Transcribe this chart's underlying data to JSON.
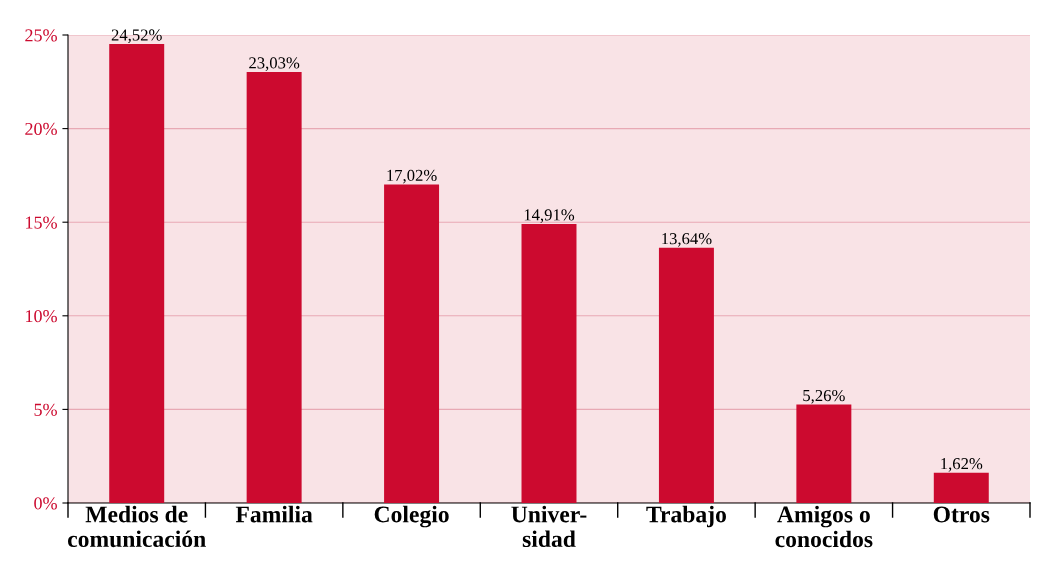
{
  "chart_data": {
    "type": "bar",
    "categories": [
      "Medios de\ncomunicación",
      "Familia",
      "Colegio",
      "Univer-\nsidad",
      "Trabajo",
      "Amigos o\nconocidos",
      "Otros"
    ],
    "values": [
      24.52,
      23.03,
      17.02,
      14.91,
      13.64,
      5.26,
      1.62
    ],
    "value_labels": [
      "24,52%",
      "23,03%",
      "17,02%",
      "14,91%",
      "13,64%",
      "5,26%",
      "1,62%"
    ],
    "color": "#cc0a2f",
    "ylim": [
      0,
      25
    ],
    "yticks": [
      {
        "value": 0,
        "label": "0%"
      },
      {
        "value": 5,
        "label": "5%"
      },
      {
        "value": 10,
        "label": "10%"
      },
      {
        "value": 15,
        "label": "15%"
      },
      {
        "value": 20,
        "label": "20%"
      },
      {
        "value": 25,
        "label": "25%"
      }
    ],
    "grid": "y"
  }
}
